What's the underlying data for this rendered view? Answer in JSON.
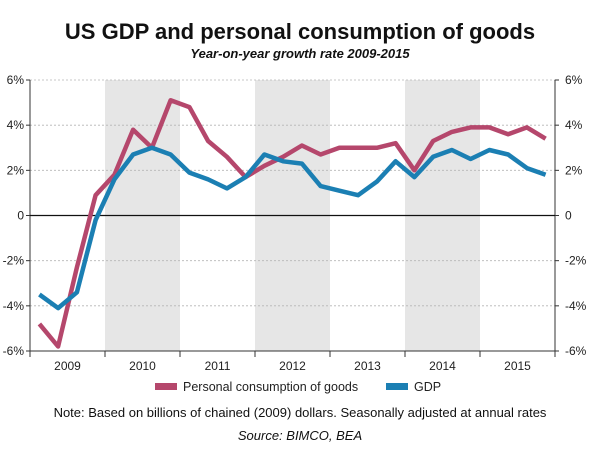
{
  "chart_data": {
    "type": "line",
    "title": "US GDP and personal consumption of goods",
    "subtitle": "Year-on-year growth rate 2009-2015",
    "years": [
      "2009",
      "2010",
      "2011",
      "2012",
      "2013",
      "2014",
      "2015"
    ],
    "quarters_per_year": 4,
    "shaded_years": [
      "2010",
      "2012",
      "2014"
    ],
    "ylim": [
      -6,
      6
    ],
    "yticks": [
      -6,
      -4,
      -2,
      0,
      2,
      4,
      6
    ],
    "ytick_labels": [
      "-6%",
      "-4%",
      "-2%",
      "0",
      "2%",
      "4%",
      "6%"
    ],
    "grid": true,
    "legend_position": "bottom",
    "series": [
      {
        "name": "Personal consumption of goods",
        "color": "#b5476c",
        "values": [
          -4.8,
          -5.8,
          -2.3,
          0.9,
          1.8,
          3.8,
          3.0,
          5.1,
          4.8,
          3.3,
          2.6,
          1.7,
          2.2,
          2.6,
          3.1,
          2.7,
          3.0,
          3.0,
          3.0,
          3.2,
          2.0,
          3.3,
          3.7,
          3.9,
          3.9,
          3.6,
          3.9,
          3.4
        ]
      },
      {
        "name": "GDP",
        "color": "#1b7fb3",
        "values": [
          -3.5,
          -4.1,
          -3.4,
          -0.2,
          1.6,
          2.7,
          3.0,
          2.7,
          1.9,
          1.6,
          1.2,
          1.7,
          2.7,
          2.4,
          2.3,
          1.3,
          1.1,
          0.9,
          1.5,
          2.4,
          1.7,
          2.6,
          2.9,
          2.5,
          2.9,
          2.7,
          2.1,
          1.8
        ]
      }
    ]
  },
  "footer": {
    "note": "Note: Based on billions of chained (2009) dollars. Seasonally adjusted at annual rates",
    "source": "Source: BIMCO, BEA"
  }
}
